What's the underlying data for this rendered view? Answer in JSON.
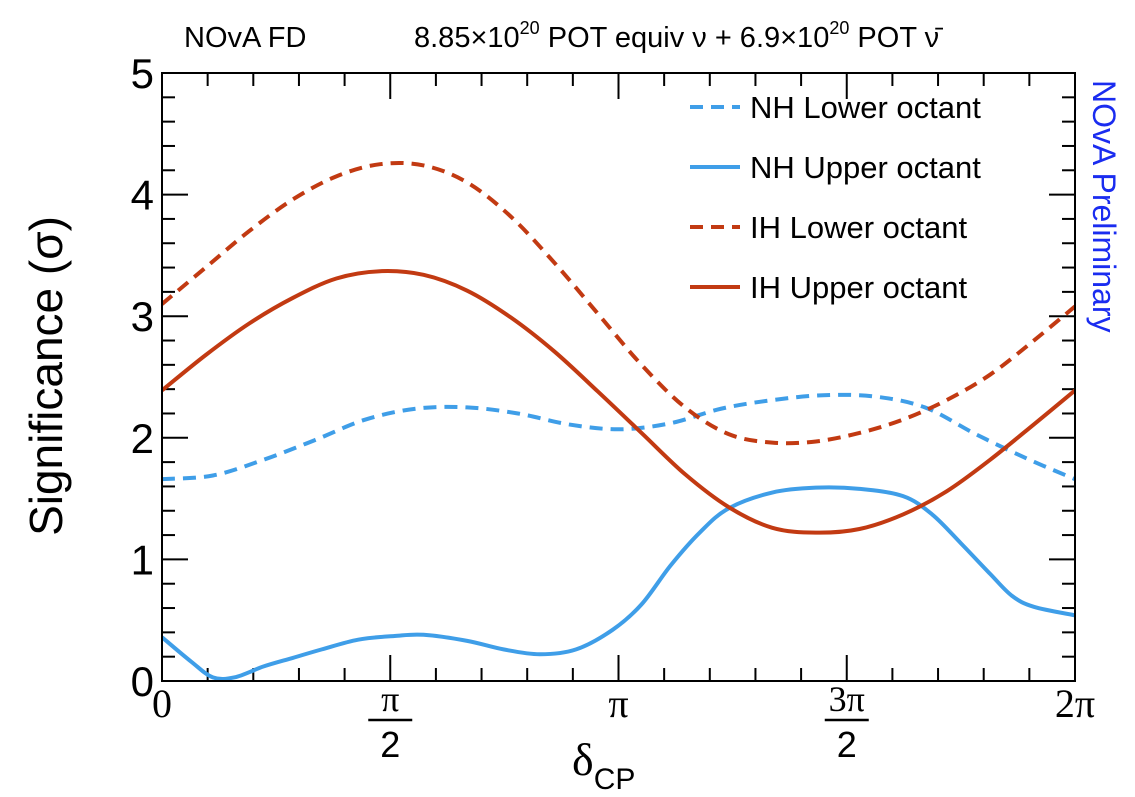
{
  "chart_data": {
    "type": "line",
    "header_left": "NOvA FD",
    "header_right_parts": {
      "a": "8.85×10",
      "a_exp": "20",
      "b": " POT equiv ν + 6.9×10",
      "b_exp": "20",
      "c": " POT ν̄"
    },
    "watermark": "NOvA Preliminary",
    "ylabel": "Significance (σ)",
    "xlabel_main": "δ",
    "xlabel_sub": "CP",
    "xlim": [
      0,
      6.283185
    ],
    "ylim": [
      0,
      5
    ],
    "yticks": [
      {
        "value": 0,
        "label": "0"
      },
      {
        "value": 1,
        "label": "1"
      },
      {
        "value": 2,
        "label": "2"
      },
      {
        "value": 3,
        "label": "3"
      },
      {
        "value": 4,
        "label": "4"
      },
      {
        "value": 5,
        "label": "5"
      }
    ],
    "xticks": [
      {
        "value": 0,
        "label": "0"
      },
      {
        "value": 1.570796,
        "label_num": "π",
        "label_den": "2"
      },
      {
        "value": 3.141593,
        "label": "π"
      },
      {
        "value": 4.712389,
        "label_num": "3π",
        "label_den": "2"
      },
      {
        "value": 6.283185,
        "label": "2π"
      }
    ],
    "legend_position": "top-right",
    "series": [
      {
        "name": "NH Lower octant",
        "color": "#3f9ee8",
        "dash": "dashed",
        "x": [
          0,
          0.35,
          0.7,
          1.05,
          1.4,
          1.75,
          2.1,
          2.45,
          2.8,
          3.15,
          3.5,
          3.85,
          4.2,
          4.55,
          4.9,
          5.25,
          5.6,
          5.95,
          6.283
        ],
        "y": [
          1.66,
          1.69,
          1.82,
          1.98,
          2.15,
          2.24,
          2.25,
          2.2,
          2.11,
          2.07,
          2.12,
          2.24,
          2.31,
          2.35,
          2.34,
          2.25,
          2.03,
          1.83,
          1.66
        ]
      },
      {
        "name": "NH Upper octant",
        "color": "#3f9ee8",
        "dash": "solid",
        "x": [
          0,
          0.2,
          0.35,
          0.5,
          0.7,
          0.9,
          1.1,
          1.35,
          1.6,
          1.8,
          2.1,
          2.35,
          2.6,
          2.85,
          3.1,
          3.3,
          3.5,
          3.7,
          3.9,
          4.2,
          4.5,
          4.8,
          5.1,
          5.3,
          5.5,
          5.7,
          5.85,
          6.0,
          6.283
        ],
        "y": [
          0.36,
          0.16,
          0.03,
          0.03,
          0.12,
          0.19,
          0.26,
          0.34,
          0.37,
          0.38,
          0.33,
          0.26,
          0.22,
          0.26,
          0.42,
          0.63,
          0.95,
          1.22,
          1.42,
          1.55,
          1.59,
          1.58,
          1.52,
          1.37,
          1.13,
          0.88,
          0.7,
          0.61,
          0.54
        ]
      },
      {
        "name": "IH Lower octant",
        "color": "#c23a12",
        "dash": "dashed",
        "x": [
          0,
          0.3,
          0.6,
          0.9,
          1.2,
          1.5,
          1.8,
          2.1,
          2.4,
          2.7,
          3.0,
          3.3,
          3.6,
          3.9,
          4.2,
          4.5,
          4.8,
          5.1,
          5.4,
          5.7,
          6.0,
          6.283
        ],
        "y": [
          3.1,
          3.4,
          3.7,
          3.96,
          4.15,
          4.25,
          4.24,
          4.1,
          3.82,
          3.44,
          3.02,
          2.6,
          2.25,
          2.03,
          1.96,
          1.97,
          2.04,
          2.15,
          2.31,
          2.52,
          2.8,
          3.08
        ]
      },
      {
        "name": "IH Upper octant",
        "color": "#c23a12",
        "dash": "solid",
        "x": [
          0,
          0.3,
          0.6,
          0.9,
          1.2,
          1.5,
          1.8,
          2.1,
          2.4,
          2.7,
          3.0,
          3.3,
          3.6,
          3.9,
          4.2,
          4.5,
          4.8,
          5.1,
          5.4,
          5.7,
          6.0,
          6.283
        ],
        "y": [
          2.39,
          2.68,
          2.94,
          3.15,
          3.31,
          3.37,
          3.34,
          3.21,
          2.99,
          2.71,
          2.38,
          2.04,
          1.7,
          1.43,
          1.26,
          1.22,
          1.25,
          1.37,
          1.56,
          1.82,
          2.11,
          2.39
        ]
      }
    ]
  }
}
